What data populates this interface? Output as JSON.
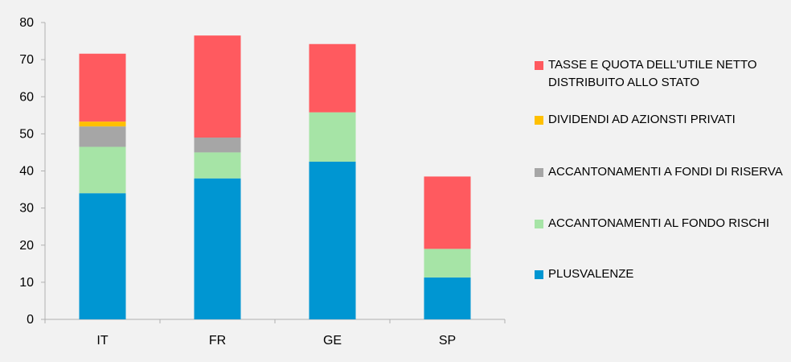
{
  "chart_data": {
    "type": "bar",
    "stacked": true,
    "categories": [
      "IT",
      "FR",
      "GE",
      "SP"
    ],
    "ylim": [
      0,
      80
    ],
    "yticks": [
      0,
      10,
      20,
      30,
      40,
      50,
      60,
      70,
      80
    ],
    "grid": false,
    "legend_position": "right",
    "series": [
      {
        "name": "PLUSVALENZE",
        "color": "#0096D2",
        "values": [
          34,
          38,
          42.5,
          11.3
        ]
      },
      {
        "name": "ACCANTONAMENTI AL FONDO RISCHI",
        "color": "#A6E4A6",
        "values": [
          12.5,
          7,
          13.3,
          7.7
        ]
      },
      {
        "name": "ACCANTONAMENTI A FONDI DI RISERVA",
        "color": "#A6A6A6",
        "values": [
          5.5,
          4,
          0,
          0
        ]
      },
      {
        "name": "DIVIDENDI AD AZIONSTI PRIVATI",
        "color": "#FFC000",
        "values": [
          1.3,
          0,
          0,
          0
        ]
      },
      {
        "name": "TASSE E QUOTA DELL'UTILE NETTO\nDISTRIBUITO ALLO STATO",
        "color": "#FF5A5F",
        "values": [
          18.3,
          27.5,
          18.4,
          19.5
        ]
      }
    ]
  }
}
